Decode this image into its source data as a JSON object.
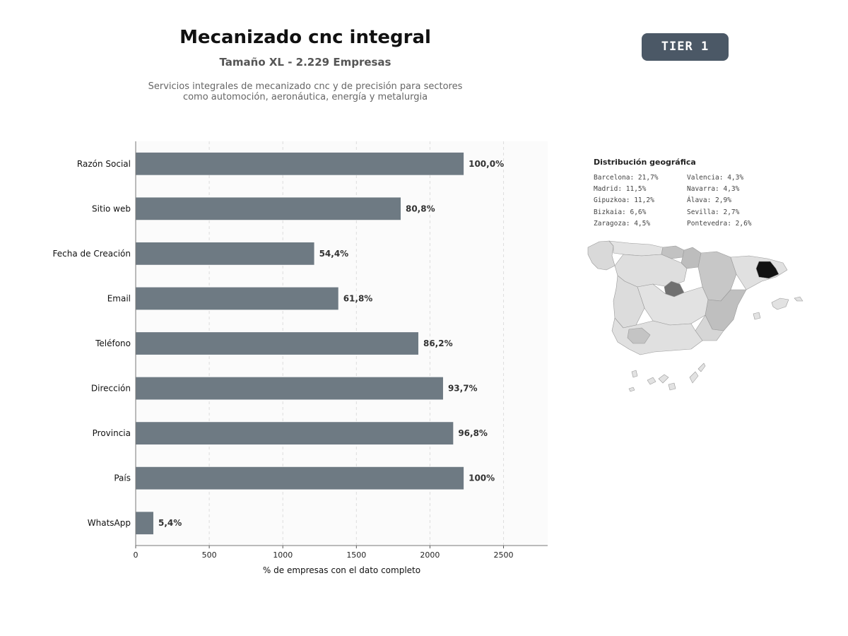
{
  "header": {
    "title": "Mecanizado cnc integral",
    "subtitle": "Tamaño XL - 2.229 Empresas",
    "description_lines": [
      "Servicios integrales de mecanizado cnc y de precisión para sectores",
      "como automoción, aeronáutica, energía y metalurgia"
    ],
    "tier": "TIER 1"
  },
  "chart_data": {
    "type": "bar",
    "orientation": "horizontal",
    "categories": [
      "Razón Social",
      "Sitio web",
      "Fecha de Creación",
      "Email",
      "Teléfono",
      "Dirección",
      "Provincia",
      "País",
      "WhatsApp"
    ],
    "values": [
      2229,
      1801,
      1213,
      1377,
      1921,
      2089,
      2158,
      2229,
      120
    ],
    "data_labels": [
      "100,0%",
      "80,8%",
      "54,4%",
      "61,8%",
      "86,2%",
      "93,7%",
      "96,8%",
      "100%",
      "5,4%"
    ],
    "xlabel": "% de empresas con el dato completo",
    "ylabel": "",
    "xlim": [
      0,
      2800
    ],
    "xticks": [
      0,
      500,
      1000,
      1500,
      2000,
      2500
    ],
    "grid": "vertical dashed",
    "bar_color": "#6e7a83"
  },
  "geo": {
    "title": "Distribución geográfica",
    "items": [
      "Barcelona: 21,7%",
      "Madrid: 11,5%",
      "Gipuzkoa: 11,2%",
      "Bizkaia: 6,6%",
      "Zaragoza: 4,5%",
      "Valencia: 4,3%",
      "Navarra: 4,3%",
      "Álava: 2,9%",
      "Sevilla: 2,7%",
      "Pontevedra: 2,6%"
    ]
  }
}
